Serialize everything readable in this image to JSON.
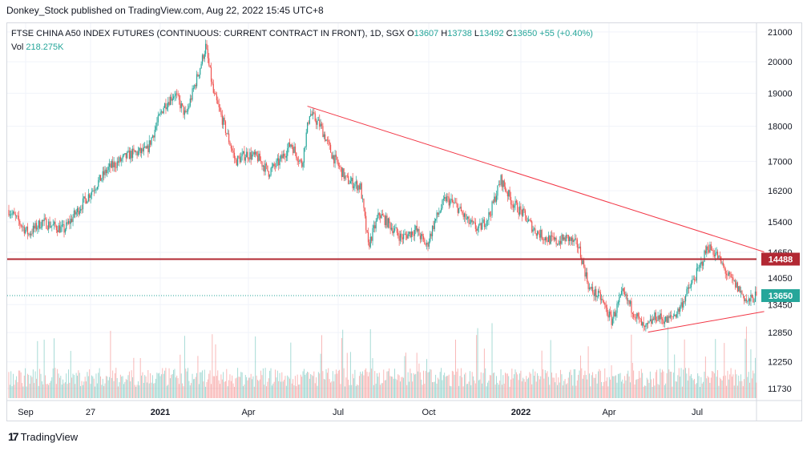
{
  "header": {
    "published_by": "Donkey_Stock published on TradingView.com, Aug 22, 2022 15:45 UTC+8"
  },
  "legend": {
    "symbol": "FTSE CHINA A50 INDEX FUTURES (CONTINUOUS: CURRENT CONTRACT IN FRONT), 1D, SGX",
    "o_label": "O",
    "o_value": "13607",
    "h_label": "H",
    "h_value": "13738",
    "l_label": "L",
    "l_value": "13492",
    "c_label": "C",
    "c_value": "13650",
    "change": "+55 (+0.40%)",
    "vol_label": "Vol",
    "vol_value": "218.275K"
  },
  "footer": {
    "brand": "TradingView",
    "logo": "17"
  },
  "colors": {
    "up": "#26a69a",
    "down": "#ef5350",
    "trendline": "#f23645",
    "support": "#b22833",
    "grid": "#f0f3fa",
    "axis_text": "#131722"
  },
  "chart_data": {
    "type": "candlestick",
    "title": "FTSE CHINA A50 INDEX FUTURES (CONTINUOUS: CURRENT CONTRACT IN FRONT), 1D, SGX",
    "y_ticks": [
      21000,
      20000,
      19000,
      18000,
      17000,
      16200,
      15400,
      14650,
      14050,
      13450,
      12850,
      12250,
      11730
    ],
    "x_ticks": [
      "Sep",
      "27",
      "2021",
      "Apr",
      "Jul",
      "Oct",
      "2022",
      "Apr",
      "Jul"
    ],
    "ylim_log": [
      11500,
      21300
    ],
    "price_anchors": [
      {
        "t": 0,
        "p": 15700
      },
      {
        "t": 18,
        "p": 15100
      },
      {
        "t": 30,
        "p": 15400
      },
      {
        "t": 50,
        "p": 15200
      },
      {
        "t": 70,
        "p": 16000
      },
      {
        "t": 90,
        "p": 16800
      },
      {
        "t": 110,
        "p": 17200
      },
      {
        "t": 125,
        "p": 17300
      },
      {
        "t": 140,
        "p": 18600
      },
      {
        "t": 150,
        "p": 19000
      },
      {
        "t": 160,
        "p": 18300
      },
      {
        "t": 172,
        "p": 19700
      },
      {
        "t": 178,
        "p": 20500
      },
      {
        "t": 185,
        "p": 19000
      },
      {
        "t": 195,
        "p": 18000
      },
      {
        "t": 205,
        "p": 17000
      },
      {
        "t": 215,
        "p": 17200
      },
      {
        "t": 225,
        "p": 17100
      },
      {
        "t": 235,
        "p": 16700
      },
      {
        "t": 245,
        "p": 17000
      },
      {
        "t": 255,
        "p": 17500
      },
      {
        "t": 265,
        "p": 16900
      },
      {
        "t": 272,
        "p": 18400
      },
      {
        "t": 282,
        "p": 18000
      },
      {
        "t": 292,
        "p": 17200
      },
      {
        "t": 305,
        "p": 16500
      },
      {
        "t": 318,
        "p": 16300
      },
      {
        "t": 325,
        "p": 14800
      },
      {
        "t": 335,
        "p": 15600
      },
      {
        "t": 345,
        "p": 15300
      },
      {
        "t": 355,
        "p": 15000
      },
      {
        "t": 368,
        "p": 15200
      },
      {
        "t": 378,
        "p": 14800
      },
      {
        "t": 385,
        "p": 15400
      },
      {
        "t": 395,
        "p": 16000
      },
      {
        "t": 405,
        "p": 15800
      },
      {
        "t": 415,
        "p": 15400
      },
      {
        "t": 425,
        "p": 15200
      },
      {
        "t": 435,
        "p": 15600
      },
      {
        "t": 445,
        "p": 16500
      },
      {
        "t": 455,
        "p": 15900
      },
      {
        "t": 465,
        "p": 15600
      },
      {
        "t": 475,
        "p": 15200
      },
      {
        "t": 485,
        "p": 15000
      },
      {
        "t": 495,
        "p": 14900
      },
      {
        "t": 505,
        "p": 15000
      },
      {
        "t": 515,
        "p": 14800
      },
      {
        "t": 525,
        "p": 13800
      },
      {
        "t": 535,
        "p": 13600
      },
      {
        "t": 545,
        "p": 13100
      },
      {
        "t": 555,
        "p": 13700
      },
      {
        "t": 565,
        "p": 13300
      },
      {
        "t": 575,
        "p": 12900
      },
      {
        "t": 585,
        "p": 13200
      },
      {
        "t": 595,
        "p": 13100
      },
      {
        "t": 605,
        "p": 13300
      },
      {
        "t": 615,
        "p": 13800
      },
      {
        "t": 625,
        "p": 14300
      },
      {
        "t": 632,
        "p": 14800
      },
      {
        "t": 640,
        "p": 14600
      },
      {
        "t": 650,
        "p": 14100
      },
      {
        "t": 660,
        "p": 13800
      },
      {
        "t": 668,
        "p": 13500
      },
      {
        "t": 676,
        "p": 13650
      }
    ],
    "last_bar_index": 676,
    "trendline_resistance": [
      {
        "t": 270,
        "p": 18600
      },
      {
        "t": 683,
        "p": 14660
      }
    ],
    "trendline_support": [
      {
        "t": 578,
        "p": 12860
      },
      {
        "t": 683,
        "p": 13300
      }
    ],
    "support_level": 14488,
    "last_price": 13650,
    "labels": {
      "support_level": "14488",
      "last_price": "13650"
    }
  }
}
